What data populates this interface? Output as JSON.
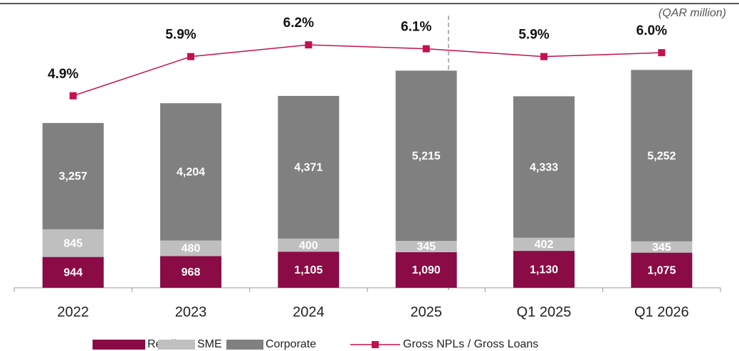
{
  "chart_data": {
    "type": "bar",
    "stacked": true,
    "annotation": "(QAR million)",
    "categories": [
      "2022",
      "2023",
      "2024",
      "2025",
      "Q1 2025",
      "Q1 2026"
    ],
    "series": [
      {
        "name": "Retail",
        "color": "#8a0b45",
        "values": [
          944,
          968,
          1105,
          1090,
          1130,
          1075
        ],
        "value_labels": [
          "944",
          "968",
          "1,105",
          "1,090",
          "1,130",
          "1,075"
        ]
      },
      {
        "name": "SME",
        "color": "#bfbfbf",
        "values": [
          845,
          480,
          400,
          345,
          402,
          345
        ],
        "value_labels": [
          "845",
          "480",
          "400",
          "345",
          "402",
          "345"
        ]
      },
      {
        "name": "Corporate",
        "color": "#808080",
        "values": [
          3257,
          4204,
          4371,
          5215,
          4333,
          5252
        ],
        "value_labels": [
          "3,257",
          "4,204",
          "4,371",
          "5,215",
          "4,333",
          "5,252"
        ]
      },
      {
        "name": "Gross NPLs / Gross Loans",
        "type": "line",
        "axis": "y2",
        "color": "#c4104f",
        "values": [
          4.9,
          5.9,
          6.2,
          6.1,
          5.9,
          6.0
        ],
        "value_labels": [
          "4.9%",
          "5.9%",
          "6.2%",
          "6.1%",
          "5.9%",
          "6.0%"
        ]
      }
    ],
    "ylim": [
      0,
      8400
    ],
    "y2lim": [
      0,
      7
    ]
  }
}
